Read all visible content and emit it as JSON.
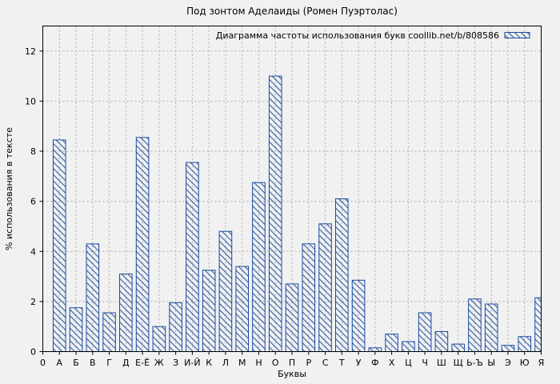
{
  "page": {
    "background": "#f1f1f1"
  },
  "chart_data": {
    "type": "bar",
    "title": "Под зонтом Аделаиды (Ромен Пуэртолас)",
    "legend_label": "Диаграмма частоты использования букв coollib.net/b/808586",
    "legend_position": "top-right-inside",
    "xlabel": "Буквы",
    "ylabel": "% использования в тексте",
    "x_origin_tick": "0",
    "categories": [
      "А",
      "Б",
      "В",
      "Г",
      "Д",
      "Е-Ё",
      "Ж",
      "З",
      "И-Й",
      "К",
      "Л",
      "М",
      "Н",
      "О",
      "П",
      "Р",
      "С",
      "Т",
      "У",
      "Ф",
      "Х",
      "Ц",
      "Ч",
      "Ш",
      "Щ",
      "Ь-Ъ",
      "Ы",
      "Э",
      "Ю",
      "Я"
    ],
    "values": [
      8.45,
      1.75,
      4.3,
      1.55,
      3.1,
      8.55,
      1.0,
      1.95,
      7.55,
      3.25,
      4.8,
      3.4,
      6.75,
      11.0,
      2.7,
      4.3,
      5.1,
      6.1,
      2.85,
      0.15,
      0.7,
      0.4,
      1.55,
      0.8,
      0.3,
      2.1,
      1.9,
      0.25,
      0.6,
      2.15
    ],
    "ylim": [
      0,
      13
    ],
    "yticks": [
      0,
      2,
      4,
      6,
      8,
      10,
      12
    ],
    "grid": true,
    "bar_style": "diagonal-hatch",
    "colors": {
      "bar": "#1b4a9e",
      "grid": "#a8a8a8",
      "frame": "#000000",
      "text": "#000000",
      "background": "#f1f1f1"
    }
  }
}
